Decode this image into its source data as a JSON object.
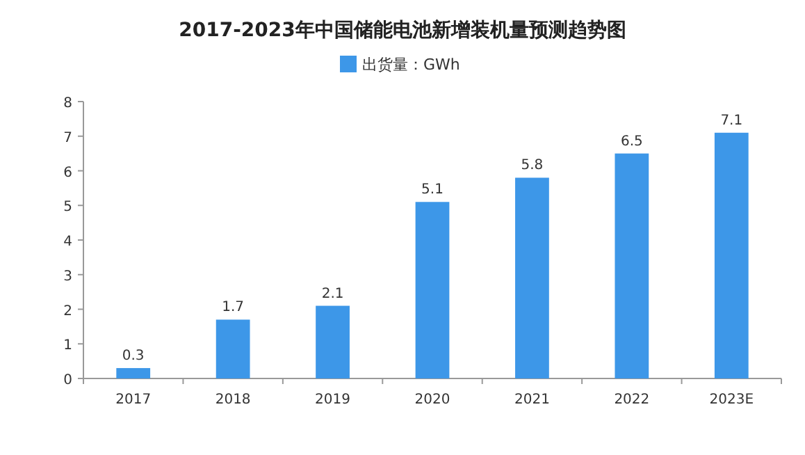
{
  "chart_data": {
    "type": "bar",
    "title": "2017-2023年中国储能电池新增装机量预测趋势图",
    "categories": [
      "2017",
      "2018",
      "2019",
      "2020",
      "2021",
      "2022",
      "2023E"
    ],
    "series": [
      {
        "name": "出货量：GWh",
        "color": "#3d97e8",
        "values": [
          0.3,
          1.7,
          2.1,
          5.1,
          5.8,
          6.5,
          7.1
        ]
      }
    ],
    "ylim": [
      0,
      8
    ],
    "yticks": [
      0,
      1,
      2,
      3,
      4,
      5,
      6,
      7,
      8
    ],
    "data_labels": true,
    "legend": "top",
    "grid": false
  }
}
